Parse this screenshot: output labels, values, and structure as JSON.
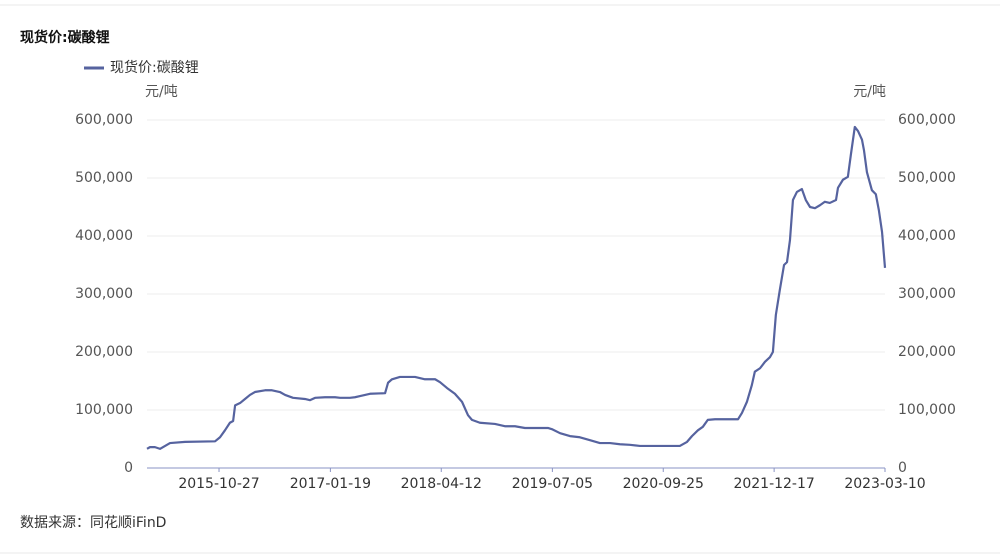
{
  "chart_data": {
    "type": "line",
    "title": "现货价:碳酸锂",
    "y_unit": "元/吨",
    "y2_unit": "元/吨",
    "source": "数据来源：同花顺iFinD",
    "x": [
      "2015-01-09",
      "2015-01-21",
      "2015-02-10",
      "2015-03-03",
      "2015-03-23",
      "2015-04-12",
      "2015-06-12",
      "2015-10-11",
      "2015-10-31",
      "2015-11-20",
      "2015-12-10",
      "2015-12-23",
      "2015-12-31",
      "2016-01-20",
      "2016-02-09",
      "2016-02-29",
      "2016-03-20",
      "2016-04-30",
      "2016-05-28",
      "2016-06-29",
      "2016-07-20",
      "2016-08-21",
      "2016-10-08",
      "2016-10-29",
      "2016-11-18",
      "2016-12-28",
      "2017-02-07",
      "2017-02-27",
      "2017-04-08",
      "2017-04-28",
      "2017-05-19",
      "2017-06-28",
      "2017-08-28",
      "2017-09-09",
      "2017-09-25",
      "2017-10-27",
      "2017-12-27",
      "2018-02-05",
      "2018-03-18",
      "2018-04-07",
      "2018-05-05",
      "2018-06-06",
      "2018-07-05",
      "2018-07-29",
      "2018-08-14",
      "2018-09-15",
      "2018-11-15",
      "2018-12-25",
      "2019-02-04",
      "2019-03-16",
      "2019-04-26",
      "2019-06-17",
      "2019-07-03",
      "2019-08-05",
      "2019-09-14",
      "2019-10-24",
      "2019-12-04",
      "2020-01-13",
      "2020-02-23",
      "2020-04-03",
      "2020-05-13",
      "2020-06-23",
      "2020-09-12",
      "2020-12-01",
      "2020-12-30",
      "2021-01-19",
      "2021-02-12",
      "2021-03-04",
      "2021-03-24",
      "2021-04-22",
      "2021-06-21",
      "2021-07-24",
      "2021-08-09",
      "2021-08-29",
      "2021-09-18",
      "2021-09-30",
      "2021-10-21",
      "2021-11-10",
      "2021-11-30",
      "2021-12-12",
      "2021-12-24",
      "2022-01-09",
      "2022-01-26",
      "2022-02-07",
      "2022-02-19",
      "2022-03-03",
      "2022-03-19",
      "2022-04-08",
      "2022-04-24",
      "2022-05-11",
      "2022-05-31",
      "2022-06-20",
      "2022-07-10",
      "2022-07-30",
      "2022-08-24",
      "2022-09-01",
      "2022-09-21",
      "2022-10-11",
      "2022-10-23",
      "2022-11-08",
      "2022-11-21",
      "2022-12-07",
      "2022-12-15",
      "2022-12-27",
      "2023-01-16",
      "2023-02-01",
      "2023-02-13",
      "2023-02-26",
      "2023-03-10"
    ],
    "series": [
      {
        "name": "现货价:碳酸锂",
        "color": "#56639f",
        "values": [
          33000,
          36000,
          36000,
          33000,
          38000,
          43000,
          45000,
          46000,
          53000,
          65000,
          78000,
          81000,
          108000,
          112000,
          119000,
          126000,
          131000,
          134000,
          134000,
          131000,
          126000,
          121000,
          119000,
          117000,
          121000,
          122000,
          122000,
          121000,
          121000,
          122000,
          124000,
          128000,
          129000,
          147000,
          153000,
          157000,
          157000,
          153000,
          153000,
          148000,
          138000,
          128000,
          114000,
          91000,
          83000,
          78000,
          76000,
          72000,
          72000,
          69000,
          69000,
          69000,
          67000,
          60000,
          55000,
          53000,
          48000,
          43000,
          43000,
          41000,
          40000,
          38000,
          38000,
          38000,
          45000,
          55000,
          65000,
          71000,
          83000,
          84000,
          84000,
          84000,
          95000,
          114000,
          143000,
          166000,
          172000,
          183000,
          191000,
          200000,
          264000,
          307000,
          350000,
          355000,
          393000,
          462000,
          476000,
          481000,
          462000,
          450000,
          448000,
          453000,
          459000,
          457000,
          462000,
          483000,
          497000,
          502000,
          540000,
          588000,
          581000,
          566000,
          548000,
          510000,
          479000,
          472000,
          445000,
          407000,
          345000
        ]
      }
    ],
    "xlim": [
      "2015-01-09",
      "2023-03-10"
    ],
    "xticks": [
      "2015-10-27",
      "2017-01-19",
      "2018-04-12",
      "2019-07-05",
      "2020-09-25",
      "2021-12-17",
      "2023-03-10"
    ],
    "ylim": [
      0,
      600000
    ],
    "yticks": [
      0,
      {
        "value": 100000,
        "label": "100,000"
      },
      {
        "value": 200000,
        "label": "200,000"
      },
      {
        "value": 300000,
        "label": "300,000"
      },
      {
        "value": 400000,
        "label": "400,000"
      },
      {
        "value": 500000,
        "label": "500,000"
      },
      {
        "value": 600000,
        "label": "600,000"
      }
    ],
    "y2lim": [
      0,
      600000
    ],
    "y2ticks": [
      0,
      {
        "value": 100000,
        "label": "100,000"
      },
      {
        "value": 200000,
        "label": "200,000"
      },
      {
        "value": 300000,
        "label": "300,000"
      },
      {
        "value": 400000,
        "label": "400,000"
      },
      {
        "value": 500000,
        "label": "500,000"
      },
      {
        "value": 600000,
        "label": "600,000"
      }
    ],
    "grid": true
  }
}
